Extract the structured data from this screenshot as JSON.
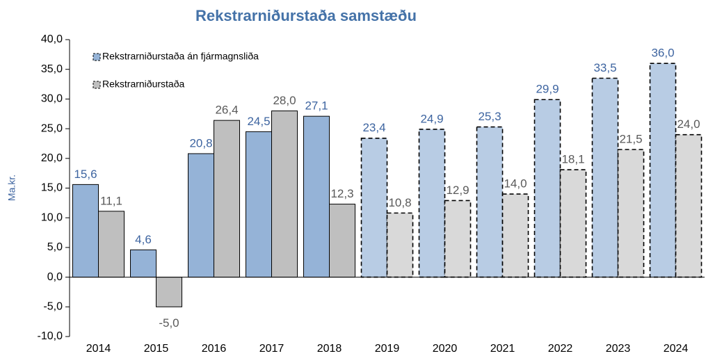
{
  "chart_data": {
    "type": "bar",
    "title": "Rekstrarniðurstaða samstæðu",
    "y_label": "Ma.kr.",
    "categories": [
      "2014",
      "2015",
      "2016",
      "2017",
      "2018",
      "2019",
      "2020",
      "2021",
      "2022",
      "2023",
      "2024"
    ],
    "series": [
      {
        "name": "Rekstrarniðurstaða án fjármagnsliða",
        "color": "#95b3d7",
        "label_color": "#3d64a0",
        "colors": [
          "#95b3d7",
          "#95b3d7",
          "#95b3d7",
          "#95b3d7",
          "#95b3d7",
          "#b8cce4",
          "#b8cce4",
          "#b8cce4",
          "#b8cce4",
          "#b8cce4",
          "#b8cce4"
        ],
        "dashed": [
          false,
          false,
          false,
          false,
          false,
          true,
          true,
          true,
          true,
          true,
          true
        ],
        "values": [
          15.6,
          4.6,
          20.8,
          24.5,
          27.1,
          23.4,
          24.9,
          25.3,
          29.9,
          33.5,
          36.0
        ],
        "value_labels": [
          "15,6",
          "4,6",
          "20,8",
          "24,5",
          "27,1",
          "23,4",
          "24,9",
          "25,3",
          "29,9",
          "33,5",
          "36,0"
        ]
      },
      {
        "name": "Rekstrarniðurstaða",
        "color": "#bfbfbf",
        "label_color": "#595959",
        "colors": [
          "#bfbfbf",
          "#bfbfbf",
          "#bfbfbf",
          "#bfbfbf",
          "#bfbfbf",
          "#d9d9d9",
          "#d9d9d9",
          "#d9d9d9",
          "#d9d9d9",
          "#d9d9d9",
          "#d9d9d9"
        ],
        "dashed": [
          false,
          false,
          false,
          false,
          false,
          true,
          true,
          true,
          true,
          true,
          true
        ],
        "values": [
          11.1,
          -5.0,
          26.4,
          28.0,
          12.3,
          10.8,
          12.9,
          14.0,
          18.1,
          21.5,
          24.0
        ],
        "value_labels": [
          "11,1",
          "-5,0",
          "26,4",
          "28,0",
          "12,3",
          "10,8",
          "12,9",
          "14,0",
          "18,1",
          "21,5",
          "24,0"
        ]
      }
    ],
    "ylim": [
      -10,
      40
    ],
    "yticks": [
      {
        "value": -10,
        "label": "-10,0"
      },
      {
        "value": -5,
        "label": "-5,0"
      },
      {
        "value": 0,
        "label": "0,0"
      },
      {
        "value": 5,
        "label": "5,0"
      },
      {
        "value": 10,
        "label": "10,0"
      },
      {
        "value": 15,
        "label": "15,0"
      },
      {
        "value": 20,
        "label": "20,0"
      },
      {
        "value": 25,
        "label": "25,0"
      },
      {
        "value": 30,
        "label": "30,0"
      },
      {
        "value": 35,
        "label": "35,0"
      },
      {
        "value": 40,
        "label": "40,0"
      }
    ],
    "legend": "top-left"
  }
}
